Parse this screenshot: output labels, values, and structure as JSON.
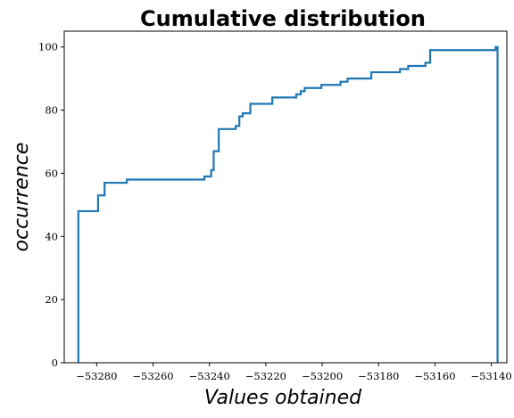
{
  "chart_data": {
    "type": "step",
    "title": "Cumulative distribution",
    "xlabel": "Values obtained",
    "ylabel": "occurrence",
    "xlim": [
      -53291.5,
      -53134.5
    ],
    "ylim": [
      0,
      105
    ],
    "xticks": [
      -53280,
      -53260,
      -53240,
      -53220,
      -53200,
      -53180,
      -53160,
      -53140
    ],
    "xtick_labels": [
      "−53280",
      "−53260",
      "−53240",
      "−53220",
      "−53200",
      "−53180",
      "−53160",
      "−53140"
    ],
    "yticks": [
      0,
      20,
      40,
      60,
      80,
      100
    ],
    "ytick_labels": [
      "0",
      "20",
      "40",
      "60",
      "80",
      "100"
    ],
    "grid": false,
    "color": "#1f77b4",
    "series": [
      {
        "x": [
          -53286.5,
          -53286.5,
          -53279.5,
          -53279.5,
          -53277.2,
          -53277.2,
          -53269.3,
          -53269.3,
          -53241.8,
          -53241.8,
          -53239.4,
          -53239.4,
          -53238.5,
          -53238.5,
          -53236.7,
          -53236.7,
          -53230.7,
          -53230.7,
          -53229.4,
          -53229.4,
          -53228.2,
          -53228.2,
          -53225.5,
          -53225.5,
          -53217.7,
          -53217.7,
          -53209.2,
          -53209.2,
          -53207.6,
          -53207.6,
          -53206.2,
          -53206.2,
          -53200.3,
          -53200.3,
          -53193.5,
          -53193.5,
          -53191.0,
          -53191.0,
          -53182.6,
          -53182.6,
          -53172.4,
          -53172.4,
          -53169.5,
          -53169.5,
          -53163.4,
          -53163.4,
          -53161.7,
          -53161.7,
          -53138.5,
          -53138.5,
          -53137.8,
          -53137.8
        ],
        "y": [
          0,
          48,
          48,
          53,
          53,
          57,
          57,
          58,
          58,
          59,
          59,
          61,
          61,
          67,
          67,
          74,
          74,
          75,
          75,
          78,
          78,
          79,
          79,
          82,
          82,
          84,
          84,
          85,
          85,
          86,
          86,
          87,
          87,
          88,
          88,
          89,
          89,
          90,
          90,
          92,
          92,
          93,
          93,
          94,
          94,
          95,
          95,
          99,
          99,
          100,
          100,
          0
        ]
      }
    ]
  }
}
